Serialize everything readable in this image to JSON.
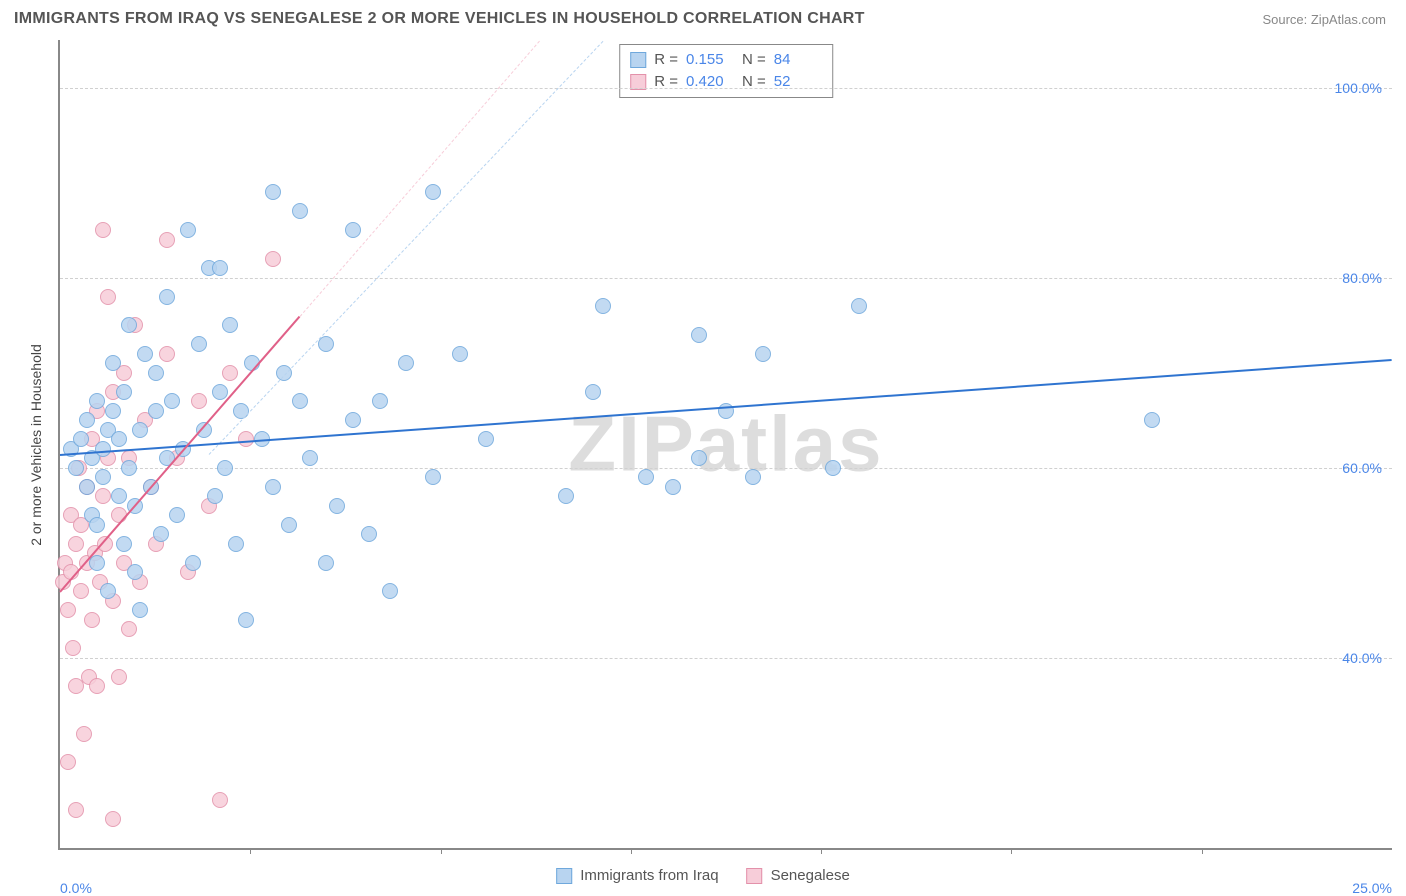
{
  "title": "IMMIGRANTS FROM IRAQ VS SENEGALESE 2 OR MORE VEHICLES IN HOUSEHOLD CORRELATION CHART",
  "source": "Source: ZipAtlas.com",
  "watermark": "ZIPatlas",
  "chart": {
    "type": "scatter",
    "y_label": "2 or more Vehicles in Household",
    "background_color": "#ffffff",
    "grid_color": "#d0d0d0",
    "axis_color": "#888888",
    "axis_label_color": "#4a86e8",
    "xlim": [
      0,
      25
    ],
    "ylim": [
      20,
      105
    ],
    "x_ticks": [
      0,
      25
    ],
    "x_tick_labels": [
      "0.0%",
      "25.0%"
    ],
    "x_tick_minor_count": 6,
    "y_ticks": [
      40,
      60,
      80,
      100
    ],
    "y_tick_labels": [
      "40.0%",
      "60.0%",
      "80.0%",
      "100.0%"
    ],
    "marker_radius": 8,
    "marker_border_width": 1.5,
    "series": [
      {
        "name": "Immigrants from Iraq",
        "fill": "#b8d4f0",
        "stroke": "#6fa8dc",
        "r_value": "0.155",
        "n_value": "84",
        "trend": {
          "x1": 0,
          "y1": 61.5,
          "x2": 25,
          "y2": 71.5,
          "color": "#2f74d0",
          "width": 2.5,
          "dash": false
        },
        "trend_dash": {
          "x1": 2.8,
          "y1": 61.5,
          "x2": 10.2,
          "y2": 105,
          "color": "#b8d4f0",
          "width": 1.5,
          "dash": true
        },
        "points": [
          [
            0.2,
            62
          ],
          [
            0.3,
            60
          ],
          [
            0.4,
            63
          ],
          [
            0.5,
            58
          ],
          [
            0.5,
            65
          ],
          [
            0.6,
            55
          ],
          [
            0.6,
            61
          ],
          [
            0.7,
            67
          ],
          [
            0.7,
            50
          ],
          [
            0.8,
            59
          ],
          [
            0.8,
            62
          ],
          [
            0.9,
            47
          ],
          [
            0.9,
            64
          ],
          [
            1.0,
            66
          ],
          [
            1.0,
            71
          ],
          [
            1.1,
            57
          ],
          [
            1.1,
            63
          ],
          [
            1.2,
            52
          ],
          [
            1.2,
            68
          ],
          [
            1.3,
            60
          ],
          [
            1.3,
            75
          ],
          [
            1.4,
            49
          ],
          [
            1.5,
            64
          ],
          [
            1.5,
            45
          ],
          [
            1.6,
            72
          ],
          [
            1.7,
            58
          ],
          [
            1.8,
            66
          ],
          [
            1.8,
            70
          ],
          [
            1.9,
            53
          ],
          [
            2.0,
            61
          ],
          [
            2.0,
            78
          ],
          [
            2.1,
            67
          ],
          [
            2.2,
            55
          ],
          [
            2.3,
            62
          ],
          [
            2.4,
            85
          ],
          [
            2.5,
            50
          ],
          [
            2.6,
            73
          ],
          [
            2.7,
            64
          ],
          [
            2.8,
            81
          ],
          [
            2.9,
            57
          ],
          [
            3.0,
            81
          ],
          [
            3.0,
            68
          ],
          [
            3.1,
            60
          ],
          [
            3.2,
            75
          ],
          [
            3.3,
            52
          ],
          [
            3.4,
            66
          ],
          [
            3.5,
            44
          ],
          [
            3.6,
            71
          ],
          [
            3.8,
            63
          ],
          [
            4.0,
            89
          ],
          [
            4.0,
            58
          ],
          [
            4.2,
            70
          ],
          [
            4.3,
            54
          ],
          [
            4.5,
            67
          ],
          [
            4.5,
            87
          ],
          [
            4.7,
            61
          ],
          [
            5.0,
            50
          ],
          [
            5.0,
            73
          ],
          [
            5.2,
            56
          ],
          [
            5.5,
            65
          ],
          [
            5.5,
            85
          ],
          [
            5.8,
            53
          ],
          [
            6.0,
            67
          ],
          [
            6.2,
            47
          ],
          [
            6.5,
            71
          ],
          [
            7.0,
            59
          ],
          [
            7.0,
            89
          ],
          [
            7.5,
            72
          ],
          [
            8.0,
            63
          ],
          [
            9.5,
            57
          ],
          [
            10.0,
            68
          ],
          [
            10.2,
            77
          ],
          [
            11.0,
            59
          ],
          [
            11.5,
            58
          ],
          [
            12.0,
            61
          ],
          [
            12.0,
            74
          ],
          [
            12.5,
            66
          ],
          [
            13.0,
            59
          ],
          [
            13.2,
            72
          ],
          [
            14.5,
            60
          ],
          [
            15.0,
            77
          ],
          [
            20.5,
            65
          ],
          [
            0.7,
            54
          ],
          [
            1.4,
            56
          ]
        ]
      },
      {
        "name": "Senegalese",
        "fill": "#f7cdd9",
        "stroke": "#e391aa",
        "r_value": "0.420",
        "n_value": "52",
        "trend": {
          "x1": 0,
          "y1": 47,
          "x2": 4.5,
          "y2": 76,
          "color": "#e06088",
          "width": 2.5,
          "dash": false
        },
        "trend_dash": {
          "x1": 4.5,
          "y1": 76,
          "x2": 9.0,
          "y2": 105,
          "color": "#f7cdd9",
          "width": 1.5,
          "dash": true
        },
        "points": [
          [
            0.05,
            48
          ],
          [
            0.1,
            50
          ],
          [
            0.15,
            45
          ],
          [
            0.2,
            49
          ],
          [
            0.2,
            55
          ],
          [
            0.25,
            41
          ],
          [
            0.3,
            52
          ],
          [
            0.3,
            37
          ],
          [
            0.35,
            60
          ],
          [
            0.4,
            47
          ],
          [
            0.4,
            54
          ],
          [
            0.45,
            32
          ],
          [
            0.5,
            58
          ],
          [
            0.5,
            50
          ],
          [
            0.55,
            38
          ],
          [
            0.6,
            44
          ],
          [
            0.6,
            63
          ],
          [
            0.65,
            51
          ],
          [
            0.7,
            37
          ],
          [
            0.7,
            66
          ],
          [
            0.75,
            48
          ],
          [
            0.8,
            57
          ],
          [
            0.8,
            85
          ],
          [
            0.85,
            52
          ],
          [
            0.9,
            61
          ],
          [
            0.9,
            78
          ],
          [
            1.0,
            46
          ],
          [
            1.0,
            68
          ],
          [
            1.1,
            55
          ],
          [
            1.1,
            38
          ],
          [
            1.2,
            70
          ],
          [
            1.2,
            50
          ],
          [
            1.3,
            61
          ],
          [
            1.4,
            75
          ],
          [
            1.5,
            48
          ],
          [
            1.6,
            65
          ],
          [
            1.7,
            58
          ],
          [
            1.8,
            52
          ],
          [
            2.0,
            72
          ],
          [
            2.0,
            84
          ],
          [
            2.2,
            61
          ],
          [
            2.4,
            49
          ],
          [
            2.6,
            67
          ],
          [
            2.8,
            56
          ],
          [
            3.0,
            25
          ],
          [
            3.2,
            70
          ],
          [
            3.5,
            63
          ],
          [
            4.0,
            82
          ],
          [
            0.15,
            29
          ],
          [
            0.3,
            24
          ],
          [
            1.0,
            23
          ],
          [
            1.3,
            43
          ]
        ]
      }
    ]
  },
  "legend_bottom": [
    {
      "label": "Immigrants from Iraq",
      "fill": "#b8d4f0",
      "stroke": "#6fa8dc"
    },
    {
      "label": "Senegalese",
      "fill": "#f7cdd9",
      "stroke": "#e391aa"
    }
  ]
}
